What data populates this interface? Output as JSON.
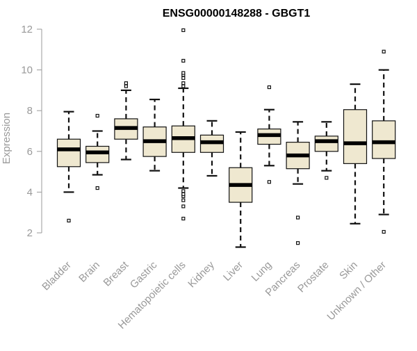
{
  "colors": {
    "box_fill": "#EFE8D0",
    "box_stroke": "#111111",
    "median": "#000000",
    "axis": "#999999",
    "title": "#000000",
    "label": "#999999"
  },
  "chart_data": {
    "type": "boxplot",
    "title": "ENSG00000148288 - GBGT1",
    "xlabel": "",
    "ylabel": "Expression",
    "ylim": [
      1,
      12.5
    ],
    "yticks": [
      2,
      4,
      6,
      8,
      10,
      12
    ],
    "grid": false,
    "categories": [
      "Bladder",
      "Brain",
      "Breast",
      "Gastric",
      "Hematopoietic cells",
      "Kidney",
      "Liver",
      "Lung",
      "Pancreas",
      "Prostate",
      "Skin",
      "Unknown / Other"
    ],
    "series": [
      {
        "name": "Bladder",
        "q1": 5.25,
        "median": 6.1,
        "q3": 6.6,
        "whisker_low": 4.0,
        "whisker_high": 7.95,
        "outliers": [
          2.6
        ]
      },
      {
        "name": "Brain",
        "q1": 5.45,
        "median": 5.95,
        "q3": 6.25,
        "whisker_low": 4.85,
        "whisker_high": 7.0,
        "outliers": [
          4.2,
          7.75
        ]
      },
      {
        "name": "Breast",
        "q1": 6.6,
        "median": 7.15,
        "q3": 7.6,
        "whisker_low": 5.6,
        "whisker_high": 9.0,
        "outliers": [
          9.2,
          9.35
        ]
      },
      {
        "name": "Gastric",
        "q1": 5.75,
        "median": 6.5,
        "q3": 7.2,
        "whisker_low": 5.05,
        "whisker_high": 8.55,
        "outliers": []
      },
      {
        "name": "Hematopoietic cells",
        "q1": 5.95,
        "median": 6.65,
        "q3": 7.25,
        "whisker_low": 4.2,
        "whisker_high": 9.1,
        "outliers": [
          2.7,
          3.3,
          3.6,
          3.8,
          3.9,
          4.05,
          9.2,
          9.35,
          9.6,
          9.75,
          9.85,
          10.45,
          11.95
        ]
      },
      {
        "name": "Kidney",
        "q1": 5.95,
        "median": 6.45,
        "q3": 6.8,
        "whisker_low": 4.8,
        "whisker_high": 7.5,
        "outliers": []
      },
      {
        "name": "Liver",
        "q1": 3.5,
        "median": 4.35,
        "q3": 5.2,
        "whisker_low": 1.3,
        "whisker_high": 6.95,
        "outliers": []
      },
      {
        "name": "Lung",
        "q1": 6.35,
        "median": 6.8,
        "q3": 7.1,
        "whisker_low": 5.3,
        "whisker_high": 8.05,
        "outliers": [
          4.5,
          9.15
        ]
      },
      {
        "name": "Pancreas",
        "q1": 5.15,
        "median": 5.8,
        "q3": 6.45,
        "whisker_low": 4.4,
        "whisker_high": 7.45,
        "outliers": [
          1.5,
          2.75
        ]
      },
      {
        "name": "Prostate",
        "q1": 6.0,
        "median": 6.5,
        "q3": 6.75,
        "whisker_low": 5.05,
        "whisker_high": 7.45,
        "outliers": [
          4.7
        ]
      },
      {
        "name": "Skin",
        "q1": 5.4,
        "median": 6.4,
        "q3": 8.05,
        "whisker_low": 2.45,
        "whisker_high": 9.3,
        "outliers": []
      },
      {
        "name": "Unknown / Other",
        "q1": 5.65,
        "median": 6.45,
        "q3": 7.5,
        "whisker_low": 2.9,
        "whisker_high": 10.0,
        "outliers": [
          2.05,
          10.9
        ]
      }
    ]
  }
}
